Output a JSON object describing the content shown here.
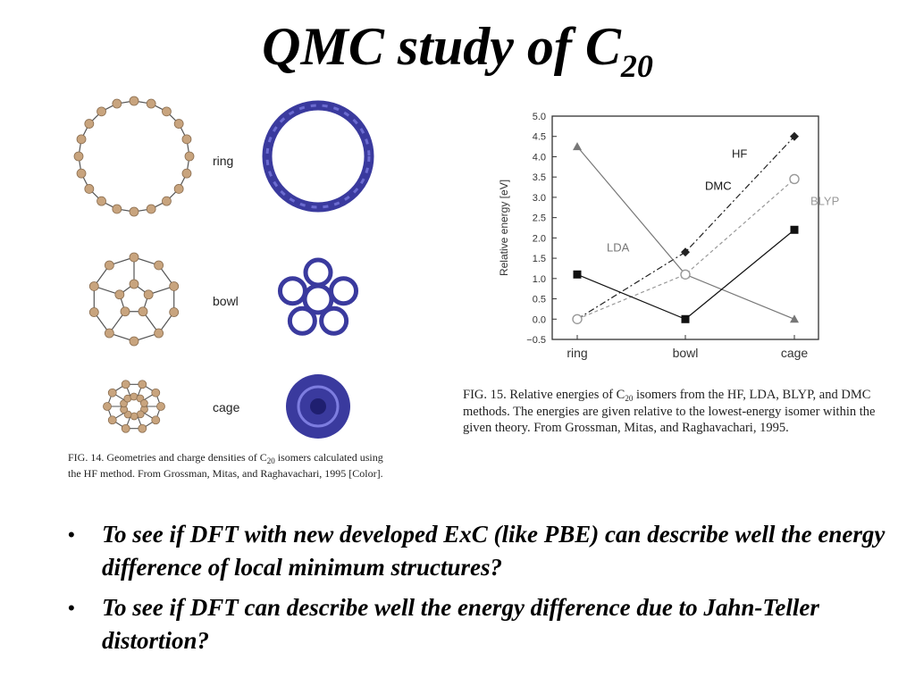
{
  "slide": {
    "title_main": "QMC study of C",
    "title_sub": "20"
  },
  "figure_left": {
    "labels": [
      "ring",
      "bowl",
      "cage"
    ],
    "caption_a": "FIG. 14. Geometries and charge densities of C",
    "caption_sub": "20",
    "caption_b": " isomers calculated using the HF method. From Grossman, Mitas, and Raghavachari, 1995 [Color].",
    "colors": {
      "atom": "#c8a47e",
      "density": "#3a3a9e"
    }
  },
  "figure_right": {
    "caption_a": "FIG. 15. Relative energies of C",
    "caption_sub": "20",
    "caption_b": " isomers from the HF, LDA, BLYP, and DMC methods. The energies are given relative to the lowest-energy isomer within the given theory. From Grossman, Mitas, and Raghavachari, 1995."
  },
  "chart_data": {
    "type": "line",
    "categories": [
      "ring",
      "bowl",
      "cage"
    ],
    "ylabel": "Relative energy [eV]",
    "xlabel": "",
    "ylim": [
      -0.5,
      5.0
    ],
    "yticks": [
      "5.0",
      "4.5",
      "4.0",
      "3.5",
      "3.0",
      "2.5",
      "2.0",
      "1.5",
      "1.0",
      "0.5",
      "0.0",
      "−0.5"
    ],
    "grid": false,
    "series": [
      {
        "name": "HF",
        "values": [
          0.0,
          1.65,
          4.5
        ],
        "marker": "diamond",
        "style": "dashdot",
        "color": "#222222"
      },
      {
        "name": "LDA",
        "values": [
          4.25,
          1.1,
          0.0
        ],
        "marker": "triangle",
        "style": "solid",
        "color": "#777777"
      },
      {
        "name": "BLYP",
        "values": [
          0.0,
          1.1,
          3.45
        ],
        "marker": "circle-open",
        "style": "dashed",
        "color": "#999999"
      },
      {
        "name": "DMC",
        "values": [
          1.1,
          0.0,
          2.2
        ],
        "marker": "square",
        "style": "solid",
        "color": "#111111"
      }
    ]
  },
  "bullets": [
    "To see if DFT with new developed ExC (like PBE) can describe well the energy difference of local minimum structures?",
    "To see if DFT can describe well the energy difference due to Jahn-Teller distortion?"
  ],
  "bullet_symbol": "•"
}
